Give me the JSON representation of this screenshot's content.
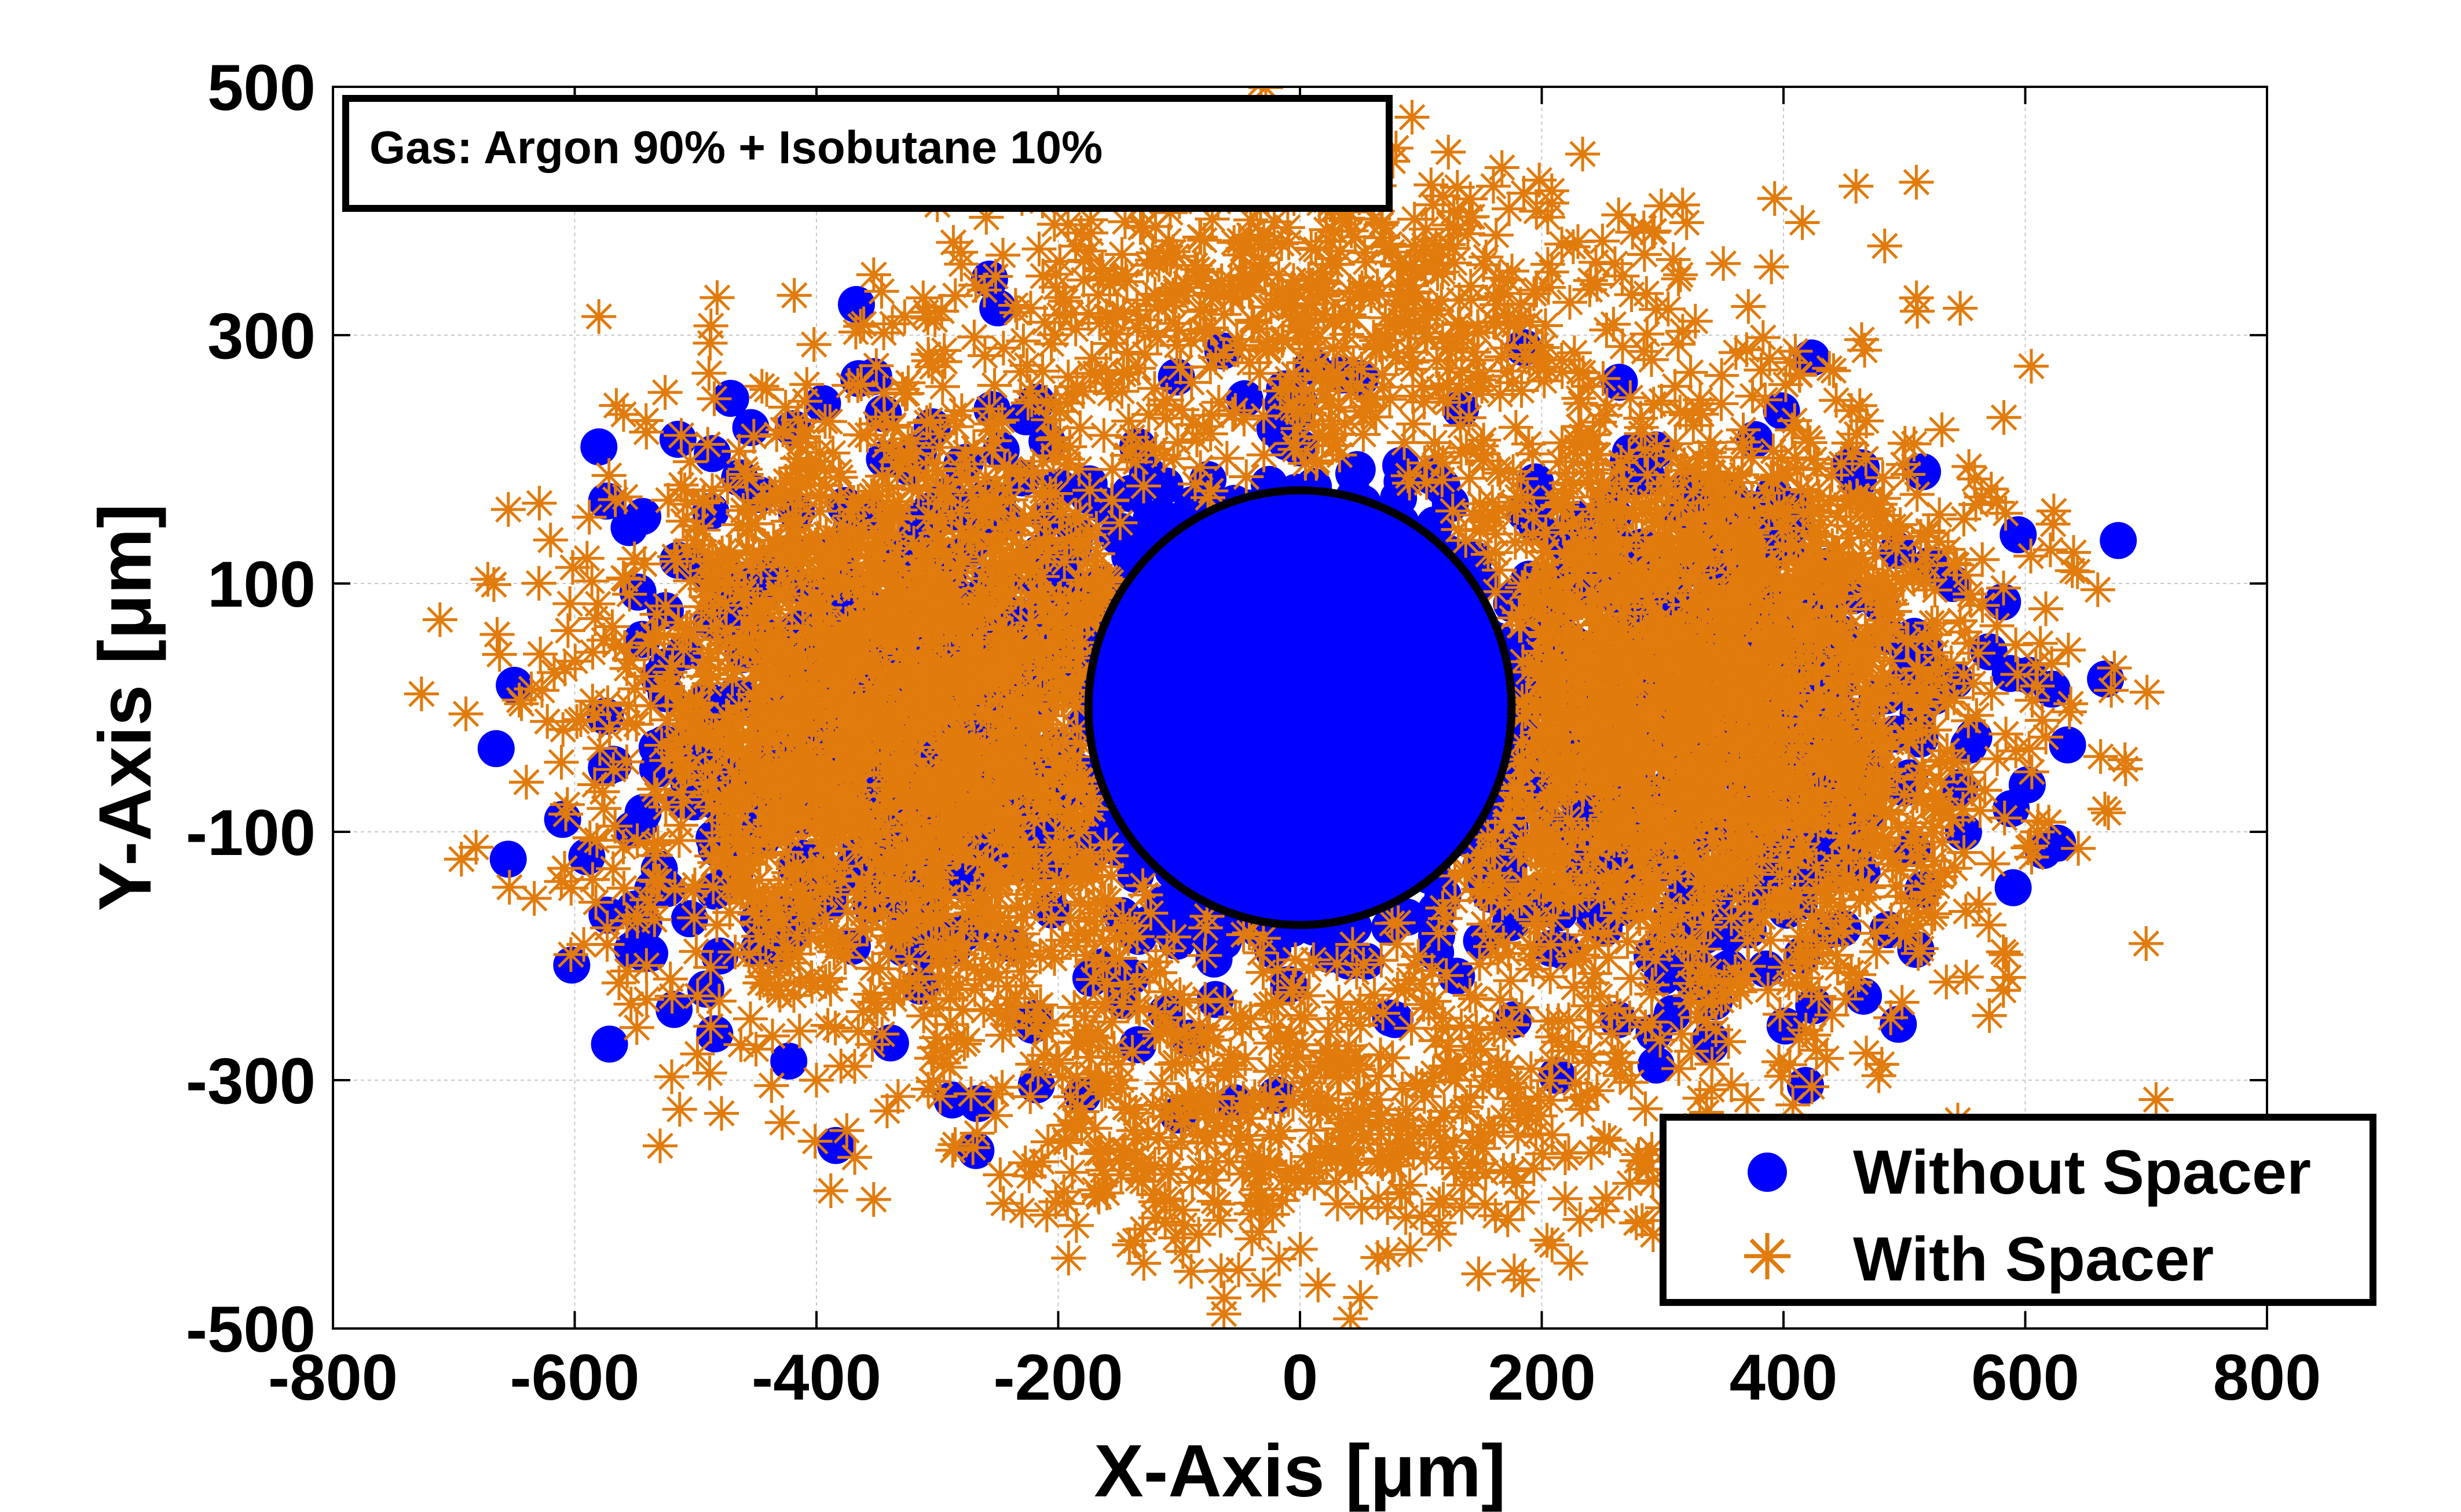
{
  "chart_data": {
    "type": "scatter",
    "title": "",
    "annotation": "Gas: Argon 90% + Isobutane 10%",
    "xlabel": "X-Axis [μm]",
    "ylabel": "Y-Axis [μm]",
    "xlim": [
      -800,
      800
    ],
    "ylim": [
      -500,
      500
    ],
    "xticks": [
      -800,
      -600,
      -400,
      -200,
      0,
      200,
      400,
      600,
      800
    ],
    "yticks": [
      -500,
      -300,
      -100,
      100,
      300,
      500
    ],
    "xtick_labels": [
      "-800",
      "-600",
      "-400",
      "-200",
      "0",
      "200",
      "400",
      "600",
      "800"
    ],
    "ytick_labels": [
      "-500",
      "-300",
      "-100",
      "100",
      "300",
      "500"
    ],
    "grid": true,
    "legend_position": "bottom-right",
    "wire": {
      "center": [
        0,
        0
      ],
      "radius": 175,
      "color": "#000000"
    },
    "series": [
      {
        "name": "Without Spacer",
        "marker": "circle",
        "color": "#0000ff",
        "clusters": [
          {
            "cx": 0,
            "cy": 0,
            "sx": 95,
            "sy": 95,
            "n": 900
          },
          {
            "cx": -330,
            "cy": -20,
            "sx": 110,
            "sy": 110,
            "n": 500
          },
          {
            "cx": 330,
            "cy": -20,
            "sx": 110,
            "sy": 110,
            "n": 500
          }
        ],
        "points": [
          [
            -665,
            -33
          ],
          [
            -650,
            18
          ],
          [
            -655,
            -122
          ],
          [
            -610,
            -90
          ],
          [
            -580,
            210
          ],
          [
            -555,
            145
          ],
          [
            -505,
            -170
          ],
          [
            -480,
            -200
          ],
          [
            -590,
            -120
          ],
          [
            -530,
            -130
          ],
          [
            -395,
            245
          ],
          [
            -365,
            265
          ],
          [
            -250,
            322
          ],
          [
            -180,
            -312
          ],
          [
            -55,
            -318
          ],
          [
            -70,
            -235
          ],
          [
            10,
            275
          ],
          [
            50,
            265
          ],
          [
            75,
            -250
          ],
          [
            -150,
            -215
          ],
          [
            185,
            290
          ],
          [
            495,
            -255
          ],
          [
            515,
            190
          ],
          [
            590,
            -145
          ],
          [
            615,
            -115
          ],
          [
            635,
            -30
          ],
          [
            570,
            45
          ],
          [
            540,
            100
          ],
          [
            425,
            -240
          ],
          [
            455,
            195
          ]
        ]
      },
      {
        "name": "With Spacer",
        "marker": "asterisk",
        "color": "#e07b0c",
        "clusters": [
          {
            "cx": -330,
            "cy": 0,
            "sx": 120,
            "sy": 120,
            "n": 2200
          },
          {
            "cx": 330,
            "cy": 0,
            "sx": 120,
            "sy": 120,
            "n": 2200
          },
          {
            "cx": 0,
            "cy": 320,
            "sx": 150,
            "sy": 60,
            "n": 550
          },
          {
            "cx": 0,
            "cy": -320,
            "sx": 150,
            "sy": 60,
            "n": 550
          }
        ],
        "points": [
          [
            -690,
            -5
          ],
          [
            -580,
            315
          ],
          [
            -300,
            405
          ],
          [
            -230,
            410
          ],
          [
            -150,
            420
          ],
          [
            -5,
            410
          ],
          [
            25,
            405
          ],
          [
            110,
            405
          ],
          [
            160,
            420
          ],
          [
            205,
            395
          ],
          [
            460,
            420
          ],
          [
            510,
            330
          ],
          [
            605,
            275
          ],
          [
            640,
            125
          ],
          [
            660,
            95
          ],
          [
            700,
            -190
          ],
          [
            610,
            -100
          ],
          [
            570,
            -175
          ],
          [
            -450,
            -275
          ],
          [
            -400,
            -300
          ],
          [
            -230,
            -405
          ],
          [
            -130,
            -420
          ],
          [
            -30,
            -465
          ],
          [
            15,
            -465
          ],
          [
            50,
            -475
          ],
          [
            115,
            -415
          ],
          [
            -620,
            135
          ],
          [
            -640,
            -60
          ],
          [
            285,
            365
          ],
          [
            390,
            355
          ]
        ]
      }
    ]
  }
}
